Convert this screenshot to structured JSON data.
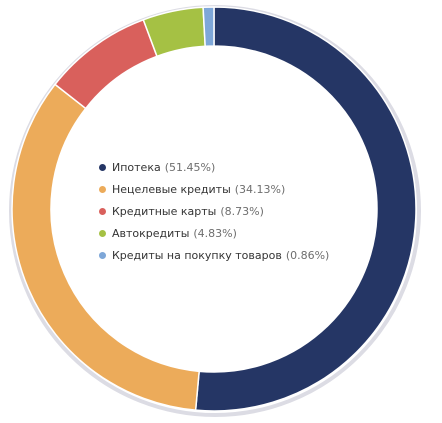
{
  "chart_data": {
    "type": "pie",
    "style": "donut",
    "legend_position": "center",
    "categories": [
      "Ипотека",
      "Нецелевые кредиты",
      "Кредитные карты",
      "Автокредиты",
      "Кредиты на покупку товаров"
    ],
    "values": [
      51.45,
      34.13,
      8.73,
      4.83,
      0.86
    ],
    "value_labels": [
      "(51.45%)",
      "(34.13%)",
      "(8.73%)",
      "(4.83%)",
      "(0.86%)"
    ],
    "colors": [
      "#253665",
      "#ecab5a",
      "#d9605c",
      "#a5c144",
      "#7ea7d8"
    ]
  }
}
